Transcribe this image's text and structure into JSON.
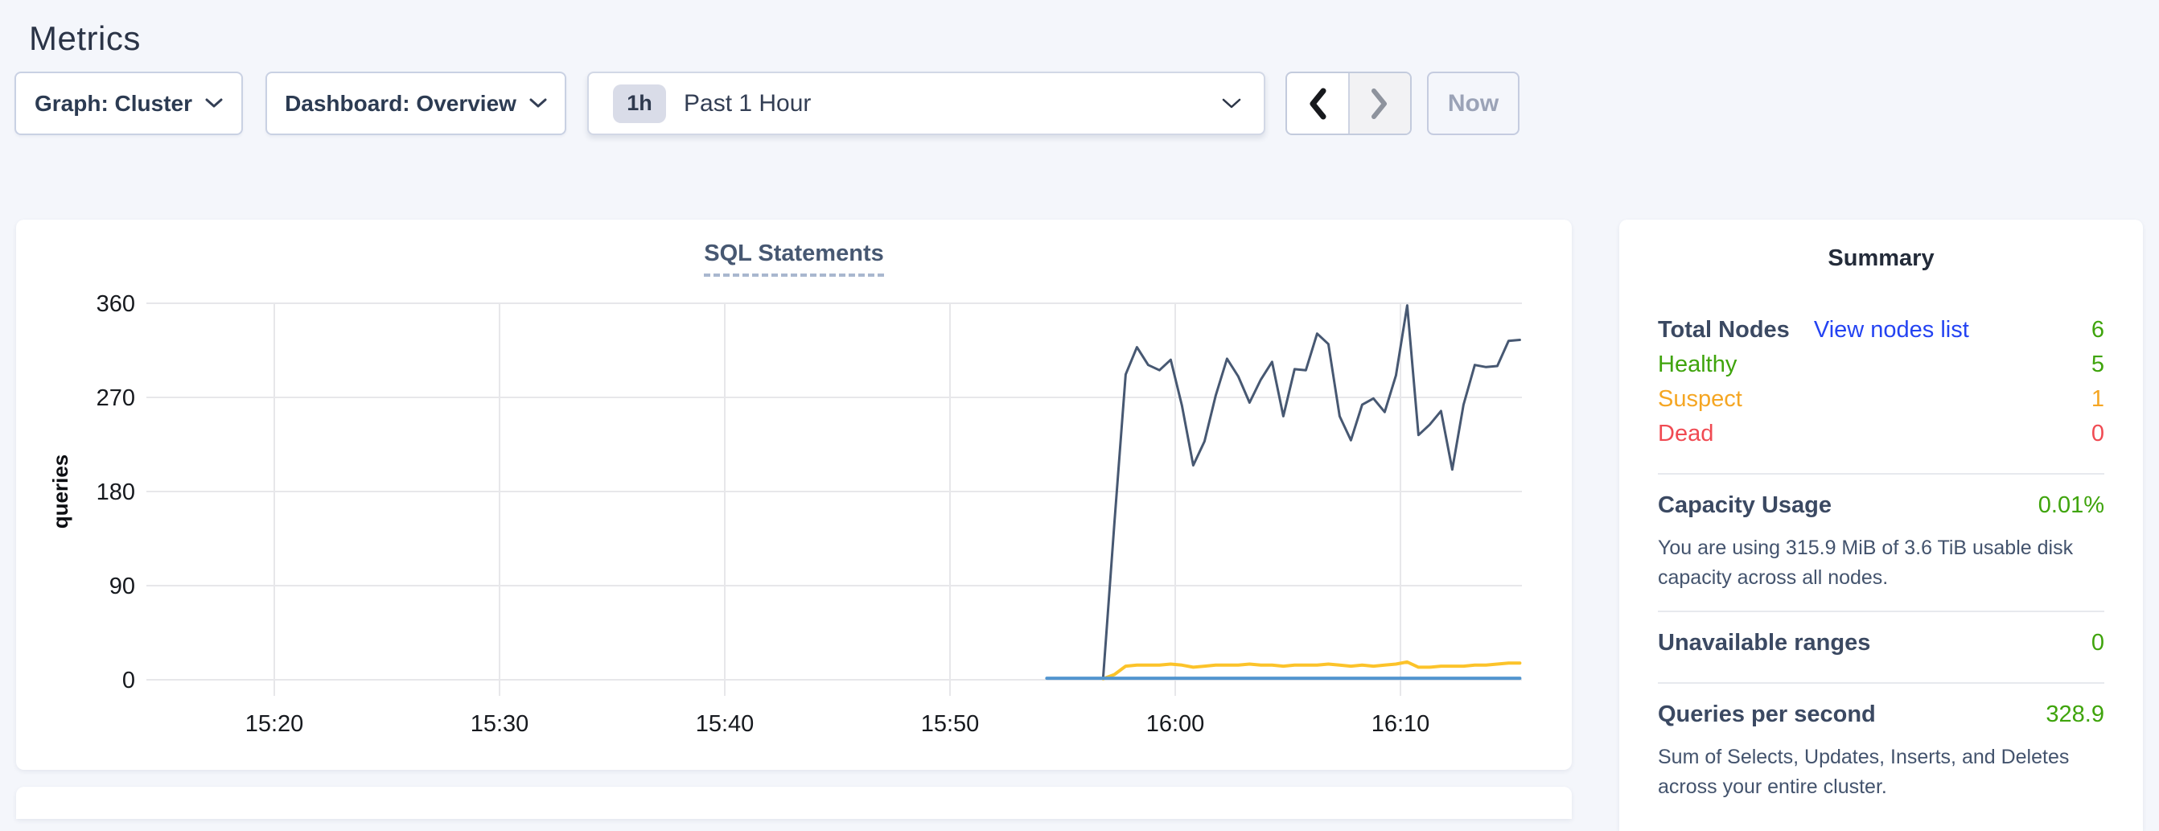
{
  "header": {
    "title": "Metrics"
  },
  "toolbar": {
    "graph_dropdown": "Graph: Cluster",
    "dashboard_dropdown": "Dashboard: Overview",
    "time_range": {
      "badge": "1h",
      "label": "Past 1 Hour"
    },
    "now_button": "Now"
  },
  "chart_data": {
    "type": "line",
    "title": "SQL Statements",
    "xlabel": "",
    "ylabel": "queries",
    "y_domain": [
      0,
      360
    ],
    "y_ticks": [
      0,
      90,
      180,
      270,
      360
    ],
    "x_domain_minutes_after_1500": [
      14.3,
      75.3
    ],
    "x_ticks": [
      {
        "t": 20,
        "label": "15:20"
      },
      {
        "t": 30,
        "label": "15:30"
      },
      {
        "t": 40,
        "label": "15:40"
      },
      {
        "t": 50,
        "label": "15:50"
      },
      {
        "t": 60,
        "label": "16:00"
      },
      {
        "t": 70,
        "label": "16:10"
      }
    ],
    "grid": true,
    "legend": "none",
    "series": [
      {
        "name": "dark-slate",
        "color": "#475872",
        "width": 3,
        "t0": 56.8,
        "dt": 0.5,
        "values": [
          2,
          150,
          292,
          318,
          301,
          296,
          306,
          262,
          205,
          228,
          272,
          307,
          290,
          265,
          287,
          304,
          252,
          297,
          296,
          331,
          321,
          252,
          229,
          263,
          269,
          256,
          291,
          358,
          234,
          244,
          257,
          201,
          263,
          301,
          299,
          300,
          324,
          325
        ]
      },
      {
        "name": "yellow",
        "color": "#fcc32a",
        "width": 4,
        "t0": 56.8,
        "dt": 0.5,
        "values": [
          1,
          5,
          13,
          14,
          14,
          14,
          15,
          14,
          12,
          13,
          14,
          14,
          14,
          15,
          14,
          14,
          13,
          14,
          14,
          14,
          15,
          14,
          13,
          14,
          13,
          14,
          15,
          17,
          12,
          12,
          13,
          13,
          13,
          14,
          14,
          15,
          16,
          16
        ]
      },
      {
        "name": "blue",
        "color": "#5295cf",
        "width": 4,
        "t0": 54.3,
        "dt": 21,
        "values": [
          1.5,
          1.5
        ]
      }
    ]
  },
  "summary": {
    "title": "Summary",
    "total_nodes": {
      "label": "Total Nodes",
      "link": "View nodes list",
      "value": "6"
    },
    "healthy": {
      "label": "Healthy",
      "value": "5"
    },
    "suspect": {
      "label": "Suspect",
      "value": "1"
    },
    "dead": {
      "label": "Dead",
      "value": "0"
    },
    "capacity": {
      "label": "Capacity Usage",
      "value": "0.01%",
      "description": "You are using 315.9 MiB of 3.6 TiB usable disk capacity across all nodes."
    },
    "unavailable_ranges": {
      "label": "Unavailable ranges",
      "value": "0"
    },
    "qps": {
      "label": "Queries per second",
      "value": "328.9",
      "description": "Sum of Selects, Updates, Inserts, and Deletes across your entire cluster."
    },
    "colors": {
      "green": "#3fa40c",
      "orange": "#f5a623",
      "red": "#f04a52",
      "link_blue": "#2443f2"
    }
  }
}
